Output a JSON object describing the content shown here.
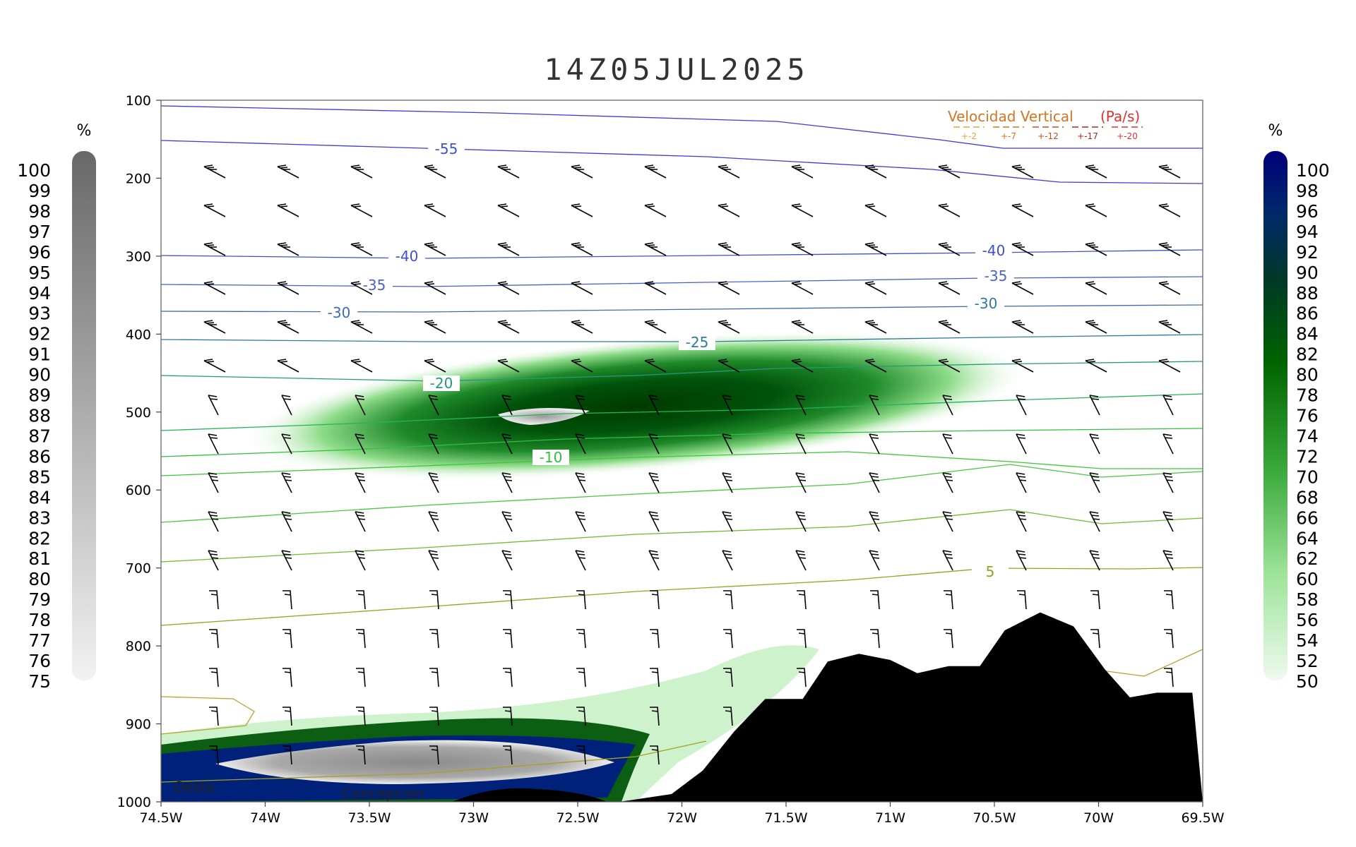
{
  "chart_data": {
    "type": "cross-section",
    "title": "14Z05JUL2025",
    "x_ticks": [
      "74.5W",
      "74W",
      "73.5W",
      "73W",
      "72.5W",
      "72W",
      "71.5W",
      "71W",
      "70.5W",
      "70W",
      "69.5W"
    ],
    "x_range": [
      -74.5,
      -69.5
    ],
    "y_ticks": [
      "100",
      "200",
      "300",
      "400",
      "500",
      "600",
      "700",
      "800",
      "900",
      "1000"
    ],
    "y_range_hpa": [
      100,
      1000
    ],
    "left_colorbar": {
      "unit": "%",
      "labels": [
        "100",
        "99",
        "98",
        "97",
        "96",
        "95",
        "94",
        "93",
        "92",
        "91",
        "90",
        "89",
        "88",
        "87",
        "86",
        "85",
        "84",
        "83",
        "82",
        "81",
        "80",
        "79",
        "78",
        "77",
        "76",
        "75"
      ]
    },
    "right_colorbar": {
      "unit": "%",
      "labels": [
        "100",
        "98",
        "96",
        "94",
        "92",
        "90",
        "88",
        "86",
        "84",
        "82",
        "80",
        "78",
        "76",
        "74",
        "72",
        "70",
        "68",
        "66",
        "64",
        "62",
        "60",
        "58",
        "56",
        "54",
        "52",
        "50"
      ]
    },
    "legend": {
      "title": "Velocidad Vertical",
      "unit": "(Pa/s)",
      "entries": [
        "+-2",
        "+-7",
        "+-12",
        "+-17",
        "+-20"
      ],
      "colors": [
        "#e8a040",
        "#d9731f",
        "#c85018",
        "#b02818",
        "#e03030"
      ]
    },
    "contour_labels": [
      "-55",
      "-40",
      "-40",
      "-35",
      "-35",
      "-30",
      "-30",
      "-25",
      "-20",
      "-10",
      "5"
    ],
    "location_labels": [
      "Oeste",
      "Concepcion"
    ],
    "terrain_profile": [
      {
        "lon": -72.3,
        "p": 1000
      },
      {
        "lon": -72.05,
        "p": 990
      },
      {
        "lon": -71.9,
        "p": 960
      },
      {
        "lon": -71.75,
        "p": 910
      },
      {
        "lon": -71.6,
        "p": 868
      },
      {
        "lon": -71.42,
        "p": 868
      },
      {
        "lon": -71.3,
        "p": 820
      },
      {
        "lon": -71.15,
        "p": 810
      },
      {
        "lon": -71.0,
        "p": 818
      },
      {
        "lon": -70.87,
        "p": 835
      },
      {
        "lon": -70.72,
        "p": 826
      },
      {
        "lon": -70.57,
        "p": 826
      },
      {
        "lon": -70.45,
        "p": 780
      },
      {
        "lon": -70.28,
        "p": 757
      },
      {
        "lon": -70.12,
        "p": 775
      },
      {
        "lon": -69.97,
        "p": 830
      },
      {
        "lon": -69.85,
        "p": 866
      },
      {
        "lon": -69.72,
        "p": 860
      },
      {
        "lon": -69.55,
        "p": 860
      },
      {
        "lon": -69.5,
        "p": 1000
      }
    ],
    "colors": {
      "terrain": "#000000",
      "left_bar_top": "#686868",
      "left_bar_bottom": "#f2f2f2",
      "right_bar_top": "#00007a",
      "right_bar_bottom": "#effaef"
    }
  }
}
